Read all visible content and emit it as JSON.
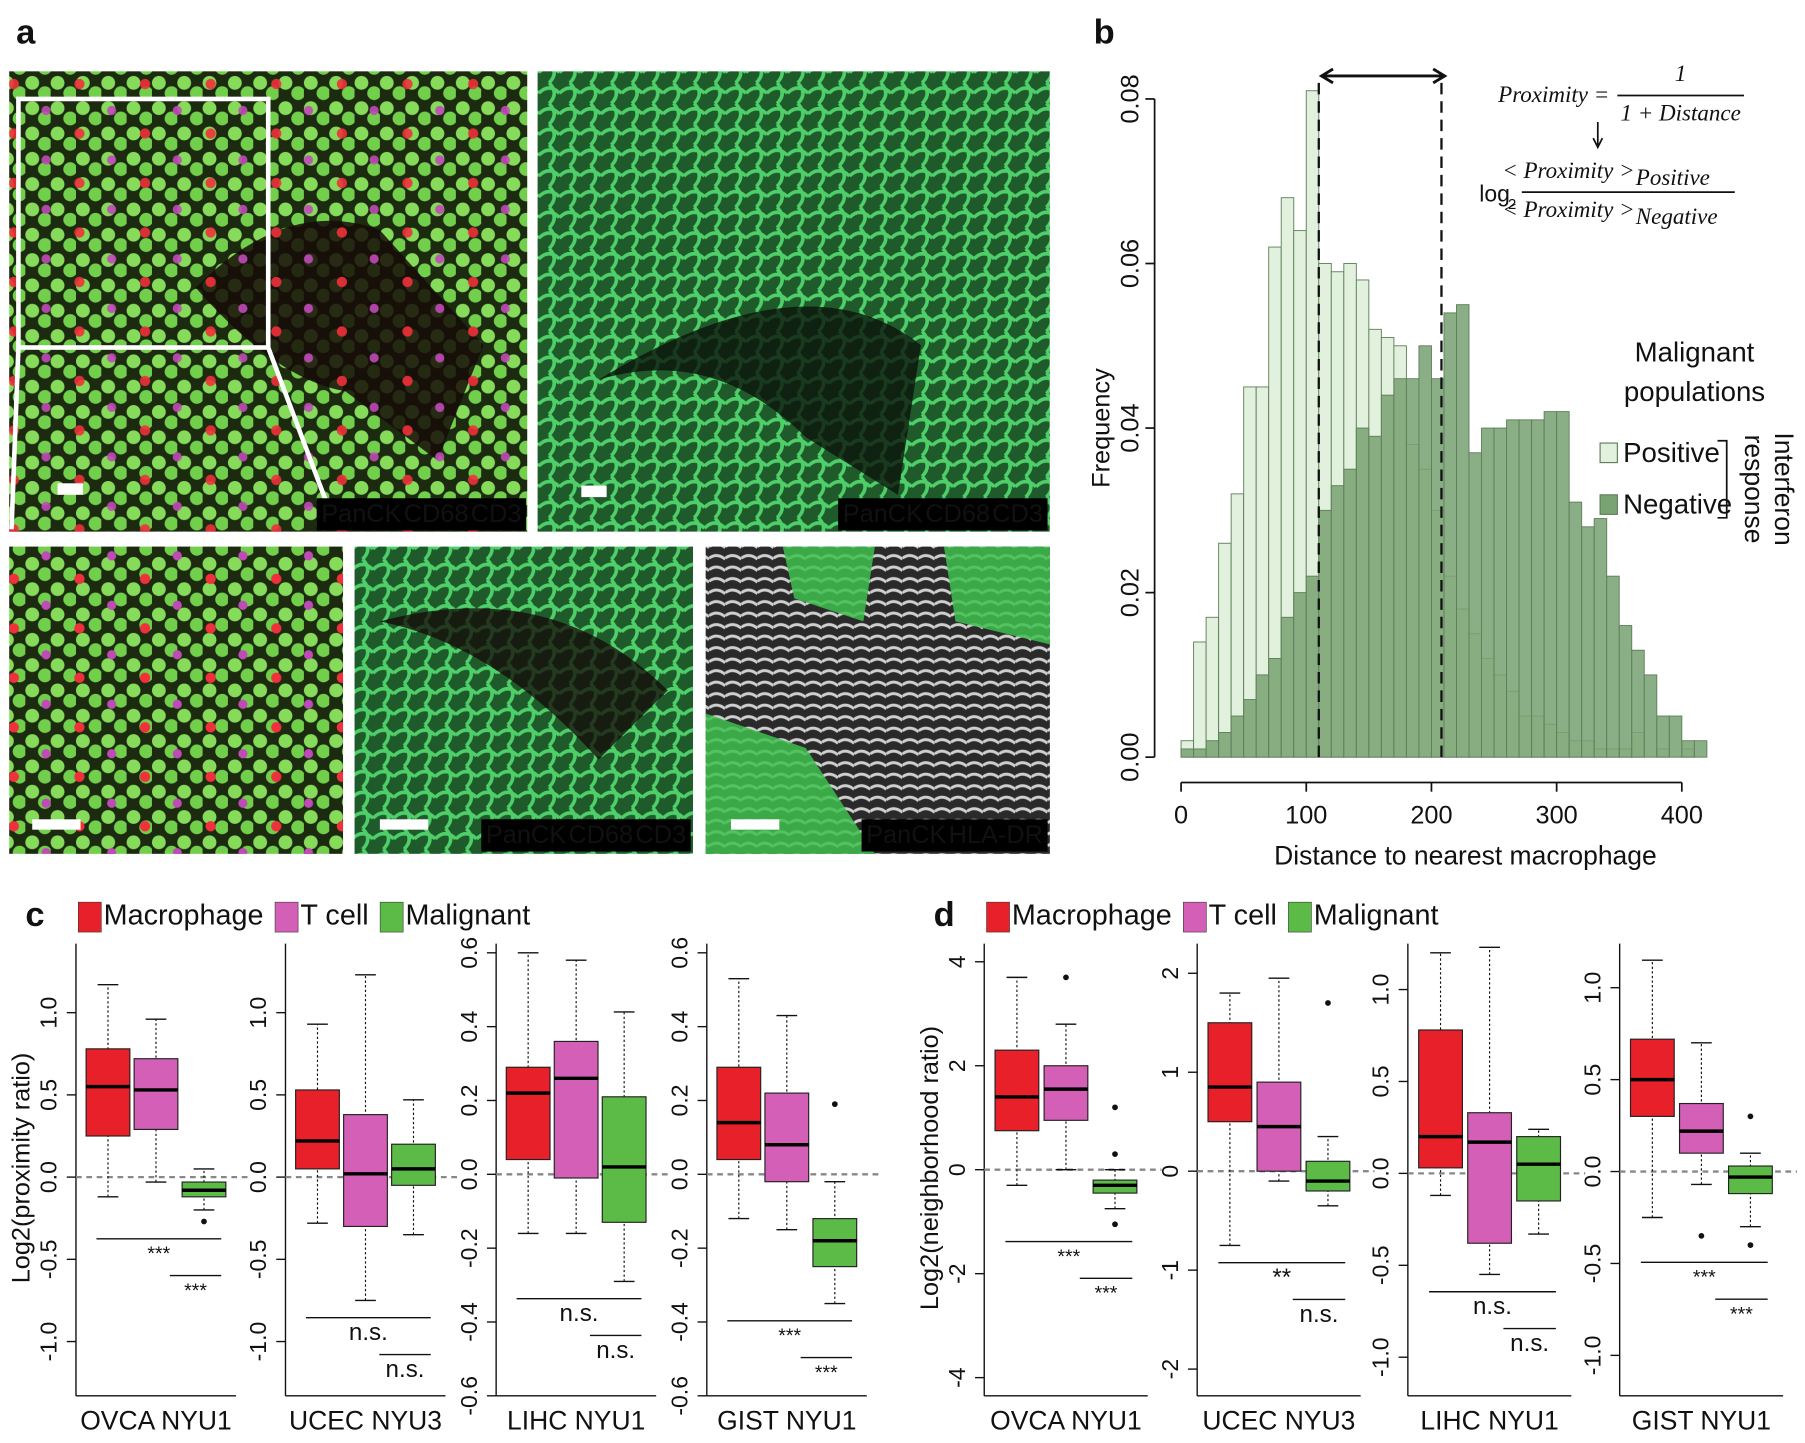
{
  "image_panel": {
    "panel_label": "a",
    "images": [
      {
        "labels": [
          {
            "text": "PanCK",
            "color": "#3dbb6c"
          },
          {
            "text": "CD68",
            "color": "#ff3a3a"
          },
          {
            "text": "CD3",
            "color": "#d45ad4"
          }
        ]
      },
      {
        "labels": [
          {
            "text": "PanCK",
            "color": "#3dbb6c"
          },
          {
            "text": "CD68",
            "color": "#ff3a3a"
          },
          {
            "text": "CD3",
            "color": "#d45ad4"
          }
        ]
      },
      {
        "labels": []
      },
      {
        "labels": [
          {
            "text": "PanCK",
            "color": "#3dbb6c"
          },
          {
            "text": "CD68",
            "color": "#ff3a3a"
          },
          {
            "text": "CD3",
            "color": "#d45ad4"
          }
        ]
      },
      {
        "labels": [
          {
            "text": "PanCK",
            "color": "#3dbb6c"
          },
          {
            "text": "HLA-DR",
            "color": "#ffffff"
          }
        ]
      }
    ]
  },
  "chart_data": [
    {
      "type": "histogram",
      "panel_label": "b",
      "xlabel": "Distance to nearest macrophage",
      "ylabel": "Frequency",
      "bins": [
        0,
        10,
        20,
        30,
        40,
        50,
        60,
        70,
        80,
        90,
        100,
        110,
        120,
        130,
        140,
        150,
        160,
        170,
        180,
        190,
        200,
        210,
        220,
        230,
        240,
        250,
        260,
        270,
        280,
        290,
        300,
        310,
        320,
        330,
        340,
        350,
        360,
        370,
        380,
        390,
        400,
        410,
        420
      ],
      "series": [
        {
          "name": "Positive",
          "color": "#e2f1dd",
          "values": [
            0.002,
            0.014,
            0.017,
            0.026,
            0.032,
            0.045,
            0.045,
            0.062,
            0.068,
            0.064,
            0.081,
            0.06,
            0.059,
            0.06,
            0.058,
            0.052,
            0.051,
            0.05,
            0.038,
            0.035,
            0.03,
            0.022,
            0.018,
            0.015,
            0.012,
            0.01,
            0.008,
            0.005,
            0.005,
            0.004,
            0.003,
            0.002,
            0.002,
            0.001,
            0.001,
            0.001,
            0.003,
            0,
            0.001,
            0,
            0.001,
            0
          ]
        },
        {
          "name": "Negative",
          "color": "#7aa374",
          "values": [
            0.001,
            0.001,
            0.002,
            0.003,
            0.005,
            0.007,
            0.01,
            0.012,
            0.017,
            0.02,
            0.022,
            0.03,
            0.033,
            0.035,
            0.04,
            0.039,
            0.044,
            0.046,
            0.046,
            0.05,
            0.046,
            0.054,
            0.055,
            0.037,
            0.04,
            0.04,
            0.041,
            0.041,
            0.041,
            0.042,
            0.042,
            0.031,
            0.028,
            0.029,
            0.022,
            0.016,
            0.013,
            0.01,
            0.005,
            0.005,
            0.002,
            0.002
          ]
        }
      ],
      "xlim": [
        0,
        400
      ],
      "xticks": [
        0,
        100,
        200,
        300,
        400
      ],
      "ylim": [
        0,
        0.08
      ],
      "yticks": [
        {
          "value": 0,
          "label": "0.00"
        },
        {
          "value": 0.02,
          "label": "0.02"
        },
        {
          "value": 0.04,
          "label": "0.04"
        },
        {
          "value": 0.06,
          "label": "0.06"
        },
        {
          "value": 0.08,
          "label": "0.08"
        }
      ],
      "vlines": [
        110,
        208
      ],
      "legend_position": "right",
      "legend_title": [
        "Malignant",
        "populations"
      ],
      "legend_group": [
        "Interferon",
        "response"
      ],
      "formula": {
        "lhs": "Proximity =",
        "numerator": "1",
        "denominator": "1 + Distance",
        "log": "log",
        "log_base": "2",
        "ratio_numerator": "< Proximity >",
        "ratio_numerator_sub": "Positive",
        "ratio_denominator": "< Proximity >",
        "ratio_denominator_sub": "Negative"
      }
    },
    {
      "type": "box",
      "panel_label": "c",
      "ylabel": "Log2(proximity ratio)",
      "series": [
        {
          "name": "Macrophage",
          "color": "#e8202a"
        },
        {
          "name": "T cell",
          "color": "#d35fb7"
        },
        {
          "name": "Malignant",
          "color": "#5cba47"
        }
      ],
      "groups": [
        {
          "title": "OVCA NYU1",
          "ylim": [
            -1.33,
            1.42
          ],
          "reference": 0,
          "yticks": [
            {
              "value": -1,
              "label": "-1.0"
            },
            {
              "value": -0.5,
              "label": "-0.5"
            },
            {
              "value": 0,
              "label": "0.0"
            },
            {
              "value": 0.5,
              "label": "0.5"
            },
            {
              "value": 1,
              "label": "1.0"
            }
          ],
          "boxes": [
            {
              "low": -0.12,
              "q1": 0.25,
              "median": 0.55,
              "q3": 0.78,
              "high": 1.17,
              "outliers": []
            },
            {
              "low": -0.03,
              "q1": 0.29,
              "median": 0.53,
              "q3": 0.72,
              "high": 0.96,
              "outliers": []
            },
            {
              "low": -0.2,
              "q1": -0.12,
              "median": -0.08,
              "q3": -0.03,
              "high": 0.05,
              "outliers": [
                -0.27
              ]
            }
          ],
          "significance": [
            "***",
            "***"
          ]
        },
        {
          "title": "UCEC NYU3",
          "ylim": [
            -1.33,
            1.42
          ],
          "reference": 0,
          "yticks": [
            {
              "value": -1,
              "label": "-1.0"
            },
            {
              "value": -0.5,
              "label": "-0.5"
            },
            {
              "value": 0,
              "label": "0.0"
            },
            {
              "value": 0.5,
              "label": "0.5"
            },
            {
              "value": 1,
              "label": "1.0"
            }
          ],
          "boxes": [
            {
              "low": -0.28,
              "q1": 0.05,
              "median": 0.22,
              "q3": 0.53,
              "high": 0.93,
              "outliers": []
            },
            {
              "low": -0.75,
              "q1": -0.3,
              "median": 0.02,
              "q3": 0.38,
              "high": 1.23,
              "outliers": []
            },
            {
              "low": -0.35,
              "q1": -0.05,
              "median": 0.05,
              "q3": 0.2,
              "high": 0.47,
              "outliers": []
            }
          ],
          "significance": [
            "n.s.",
            "n.s."
          ]
        },
        {
          "title": "LIHC NYU1",
          "ylim": [
            -0.6,
            0.625
          ],
          "reference": 0,
          "yticks": [
            {
              "value": -0.6,
              "label": "-0.6"
            },
            {
              "value": -0.4,
              "label": "-0.4"
            },
            {
              "value": -0.2,
              "label": "-0.2"
            },
            {
              "value": 0,
              "label": "0.0"
            },
            {
              "value": 0.2,
              "label": "0.2"
            },
            {
              "value": 0.4,
              "label": "0.4"
            },
            {
              "value": 0.6,
              "label": "0.6"
            }
          ],
          "boxes": [
            {
              "low": -0.16,
              "q1": 0.04,
              "median": 0.22,
              "q3": 0.29,
              "high": 0.6,
              "outliers": []
            },
            {
              "low": -0.16,
              "q1": -0.01,
              "median": 0.26,
              "q3": 0.36,
              "high": 0.58,
              "outliers": []
            },
            {
              "low": -0.29,
              "q1": -0.13,
              "median": 0.02,
              "q3": 0.21,
              "high": 0.44,
              "outliers": []
            }
          ],
          "significance": [
            "n.s.",
            "n.s."
          ]
        },
        {
          "title": "GIST NYU1",
          "ylim": [
            -0.6,
            0.625
          ],
          "reference": 0,
          "yticks": [
            {
              "value": -0.6,
              "label": "-0.6"
            },
            {
              "value": -0.4,
              "label": "-0.4"
            },
            {
              "value": -0.2,
              "label": "-0.2"
            },
            {
              "value": 0,
              "label": "0.0"
            },
            {
              "value": 0.2,
              "label": "0.2"
            },
            {
              "value": 0.4,
              "label": "0.4"
            },
            {
              "value": 0.6,
              "label": "0.6"
            }
          ],
          "boxes": [
            {
              "low": -0.12,
              "q1": 0.04,
              "median": 0.14,
              "q3": 0.29,
              "high": 0.53,
              "outliers": []
            },
            {
              "low": -0.15,
              "q1": -0.02,
              "median": 0.08,
              "q3": 0.22,
              "high": 0.43,
              "outliers": []
            },
            {
              "low": -0.35,
              "q1": -0.25,
              "median": -0.18,
              "q3": -0.12,
              "high": -0.02,
              "outliers": [
                0.19
              ]
            }
          ],
          "significance": [
            "***",
            "***"
          ]
        }
      ]
    },
    {
      "type": "box",
      "panel_label": "d",
      "ylabel": "Log2(neighborhood ratio)",
      "series": [
        {
          "name": "Macrophage",
          "color": "#e8202a"
        },
        {
          "name": "T cell",
          "color": "#d35fb7"
        },
        {
          "name": "Malignant",
          "color": "#5cba47"
        }
      ],
      "groups": [
        {
          "title": "OVCA NYU1",
          "ylim": [
            -4.35,
            4.35
          ],
          "reference": 0,
          "yticks": [
            -4,
            -2,
            0,
            2,
            4
          ],
          "boxes": [
            {
              "low": -0.3,
              "q1": 0.75,
              "median": 1.4,
              "q3": 2.3,
              "high": 3.7,
              "outliers": []
            },
            {
              "low": 0,
              "q1": 0.95,
              "median": 1.55,
              "q3": 2,
              "high": 2.8,
              "outliers": [
                3.7
              ]
            },
            {
              "low": -0.75,
              "q1": -0.45,
              "median": -0.3,
              "q3": -0.2,
              "high": 0,
              "outliers": [
                1.2,
                0.3,
                -1.05
              ]
            }
          ],
          "significance": [
            "***",
            "***"
          ]
        },
        {
          "title": "UCEC NYU3",
          "ylim": [
            -2.27,
            2.3
          ],
          "reference": 0,
          "yticks": [
            -2,
            -1,
            0,
            1,
            2
          ],
          "boxes": [
            {
              "low": -0.75,
              "q1": 0.5,
              "median": 0.85,
              "q3": 1.5,
              "high": 1.8,
              "outliers": []
            },
            {
              "low": -0.1,
              "q1": 0,
              "median": 0.45,
              "q3": 0.9,
              "high": 1.95,
              "outliers": []
            },
            {
              "low": -0.35,
              "q1": -0.2,
              "median": -0.1,
              "q3": 0.1,
              "high": 0.35,
              "outliers": [
                1.7
              ]
            }
          ],
          "significance": [
            "**",
            "n.s."
          ]
        },
        {
          "title": "LIHC NYU1",
          "ylim": [
            -1.21,
            1.25
          ],
          "reference": 0,
          "yticks": [
            {
              "value": -1,
              "label": "-1.0"
            },
            {
              "value": -0.5,
              "label": "-0.5"
            },
            {
              "value": 0,
              "label": "0.0"
            },
            {
              "value": 0.5,
              "label": "0.5"
            },
            {
              "value": 1,
              "label": "1.0"
            }
          ],
          "boxes": [
            {
              "low": -0.12,
              "q1": 0.03,
              "median": 0.2,
              "q3": 0.78,
              "high": 1.2,
              "outliers": []
            },
            {
              "low": -0.55,
              "q1": -0.38,
              "median": 0.17,
              "q3": 0.33,
              "high": 1.23,
              "outliers": []
            },
            {
              "low": -0.33,
              "q1": -0.15,
              "median": 0.05,
              "q3": 0.2,
              "high": 0.24,
              "outliers": []
            }
          ],
          "significance": [
            "n.s.",
            "n.s."
          ]
        },
        {
          "title": "GIST NYU1",
          "ylim": [
            -1.22,
            1.24
          ],
          "reference": 0,
          "yticks": [
            {
              "value": -1,
              "label": "-1.0"
            },
            {
              "value": -0.5,
              "label": "-0.5"
            },
            {
              "value": 0,
              "label": "0.0"
            },
            {
              "value": 0.5,
              "label": "0.5"
            },
            {
              "value": 1,
              "label": "1.0"
            }
          ],
          "boxes": [
            {
              "low": -0.25,
              "q1": 0.3,
              "median": 0.5,
              "q3": 0.72,
              "high": 1.15,
              "outliers": []
            },
            {
              "low": -0.07,
              "q1": 0.1,
              "median": 0.22,
              "q3": 0.37,
              "high": 0.7,
              "outliers": [
                -0.35
              ]
            },
            {
              "low": -0.3,
              "q1": -0.12,
              "median": -0.03,
              "q3": 0.03,
              "high": 0.1,
              "outliers": [
                0.3,
                -0.4
              ]
            }
          ],
          "significance": [
            "***",
            "***"
          ]
        }
      ]
    }
  ]
}
